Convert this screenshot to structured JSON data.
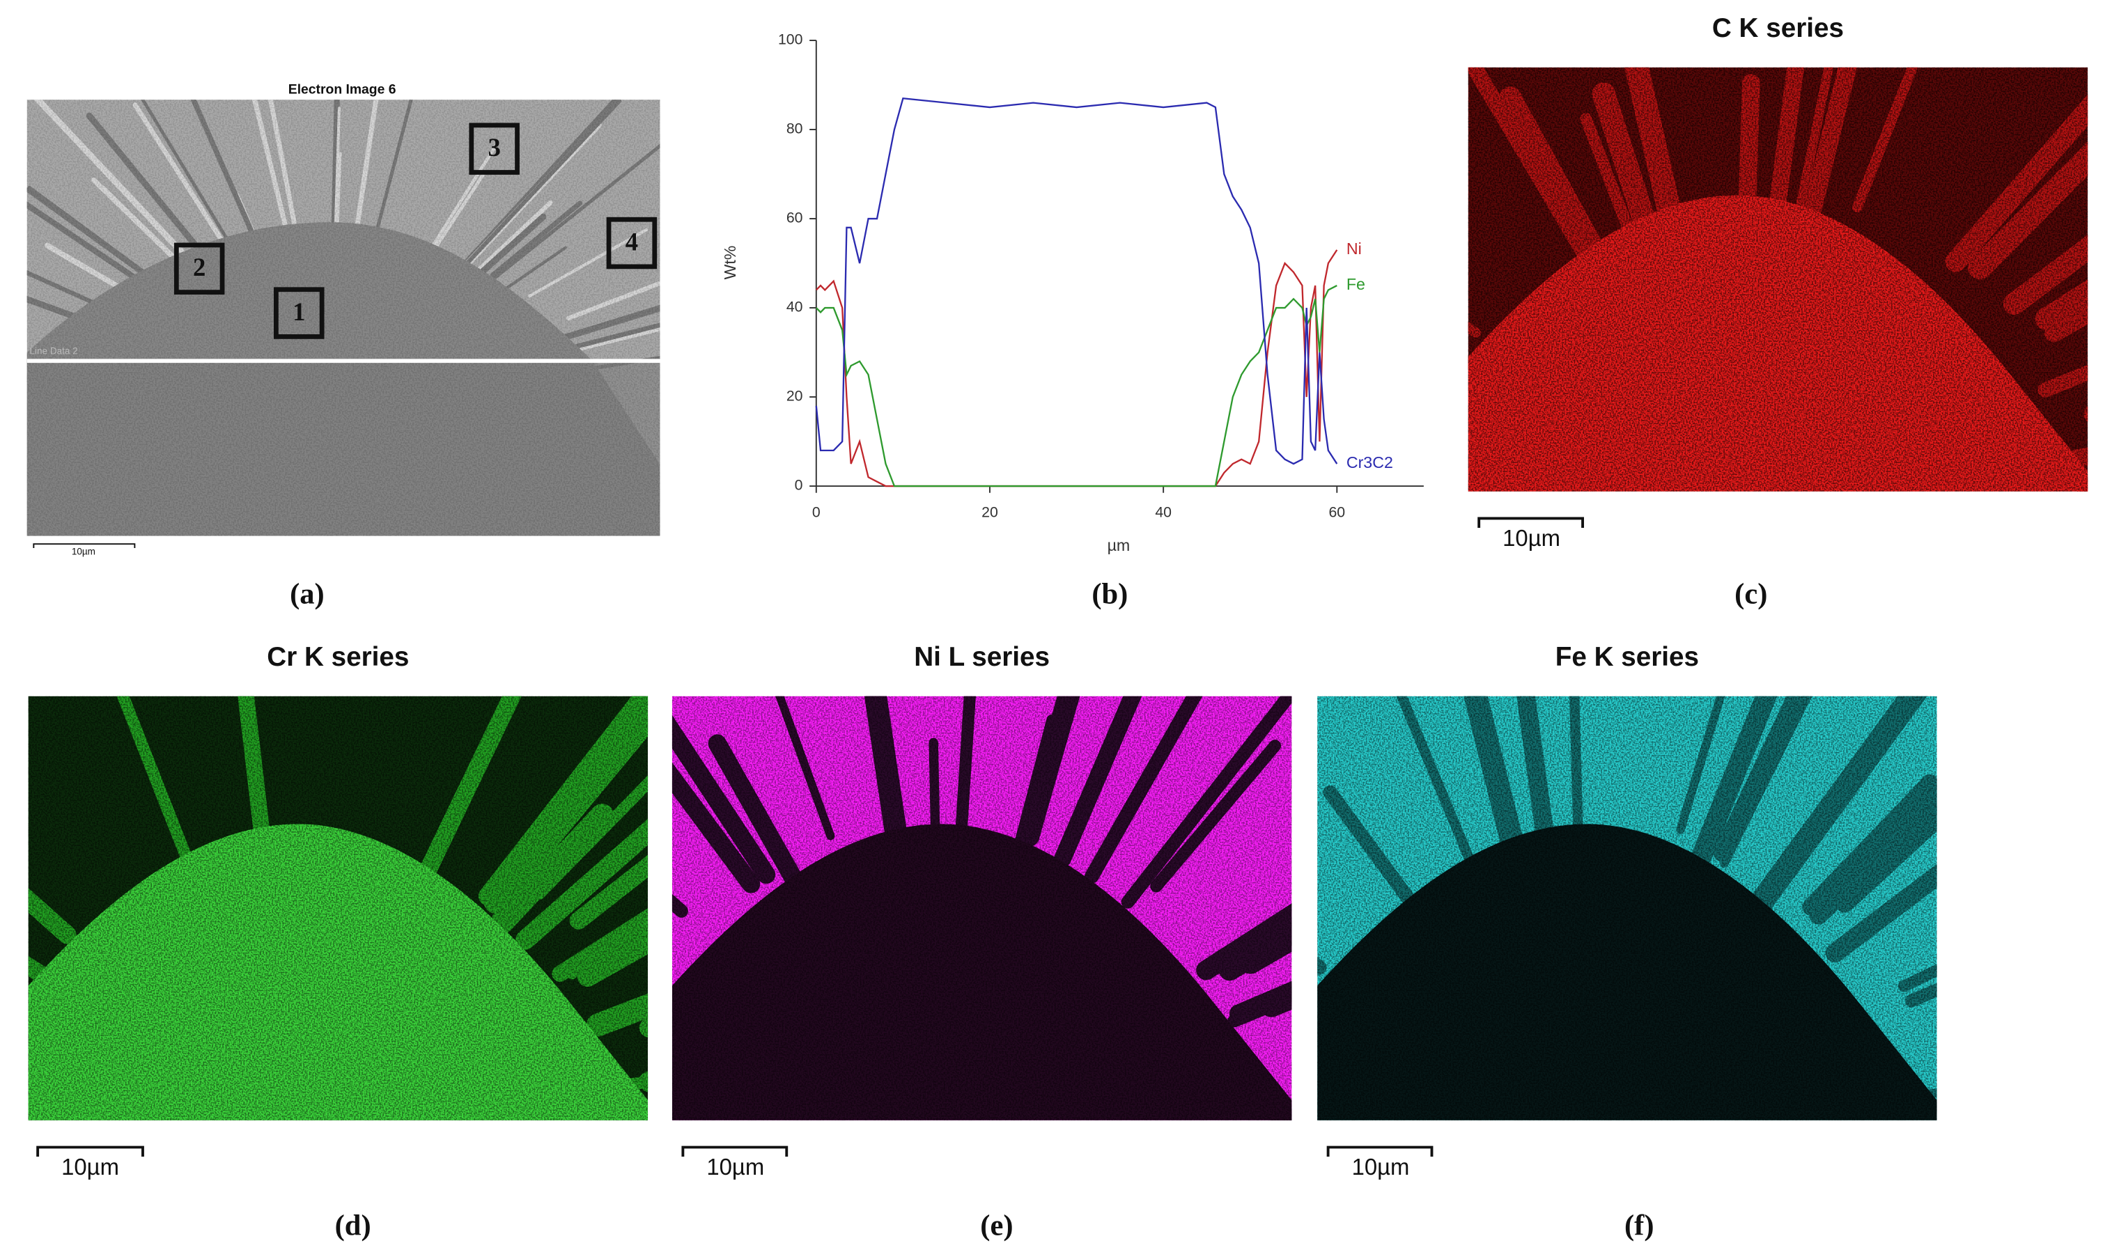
{
  "panels": [
    {
      "label": "(a)",
      "title": "Electron Image 6",
      "scale_bar": "10µm",
      "line_label": "Line Data 2",
      "regions": [
        "1",
        "2",
        "3",
        "4"
      ]
    },
    {
      "label": "(c)",
      "title": "C K series",
      "scale_bar": "10µm"
    },
    {
      "label": "(d)",
      "title": "Cr K series",
      "scale_bar": "10µm"
    },
    {
      "label": "(e)",
      "title": "Ni L series",
      "scale_bar": "10µm"
    },
    {
      "label": "(f)",
      "title": "Fe K series",
      "scale_bar": "10µm"
    }
  ],
  "chart_data": {
    "type": "line",
    "label": "(b)",
    "xlabel": "µm",
    "ylabel": "Wt%",
    "x": [
      0,
      0.5,
      1,
      2,
      3,
      3.5,
      4,
      5,
      6,
      7,
      8,
      9,
      10,
      15,
      20,
      25,
      30,
      35,
      40,
      45,
      46,
      47,
      48,
      49,
      50,
      51,
      52,
      53,
      54,
      55,
      56,
      56.5,
      57,
      57.5,
      58,
      58.5,
      59,
      60
    ],
    "xlim": [
      0,
      70
    ],
    "ylim": [
      0,
      100
    ],
    "xticks": [
      0,
      20,
      40,
      60
    ],
    "yticks": [
      0,
      20,
      40,
      60,
      80,
      100
    ],
    "series": [
      {
        "name": "Ni",
        "color": "#c0282d",
        "values": [
          44,
          45,
          44,
          46,
          40,
          20,
          5,
          10,
          2,
          1,
          0,
          0,
          0,
          0,
          0,
          0,
          0,
          0,
          0,
          0,
          0,
          3,
          5,
          6,
          5,
          10,
          30,
          45,
          50,
          48,
          45,
          20,
          40,
          45,
          10,
          45,
          50,
          53
        ]
      },
      {
        "name": "Fe",
        "color": "#2e9a2e",
        "values": [
          40,
          39,
          40,
          40,
          35,
          25,
          27,
          28,
          25,
          15,
          5,
          0,
          0,
          0,
          0,
          0,
          0,
          0,
          0,
          0,
          0,
          10,
          20,
          25,
          28,
          30,
          35,
          40,
          40,
          42,
          40,
          36,
          38,
          42,
          30,
          42,
          44,
          45
        ]
      },
      {
        "name": "Cr3C2",
        "color": "#2b2bb0",
        "values": [
          18,
          8,
          8,
          8,
          10,
          58,
          58,
          50,
          60,
          60,
          70,
          80,
          87,
          86,
          85,
          86,
          85,
          86,
          85,
          86,
          85,
          70,
          65,
          62,
          58,
          50,
          25,
          8,
          6,
          5,
          6,
          40,
          10,
          8,
          30,
          15,
          8,
          5
        ]
      }
    ]
  }
}
